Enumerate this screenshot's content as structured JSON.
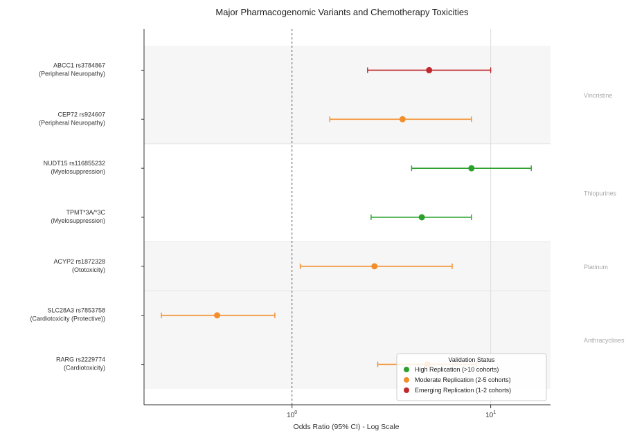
{
  "chart_data": {
    "type": "forest",
    "title": "Major Pharmacogenomic Variants and Chemotherapy Toxicities",
    "xlabel": "Odds Ratio (95% CI) - Log Scale",
    "ylabel": "",
    "x_scale": "log",
    "xlim": [
      0.18,
      20
    ],
    "x_ticks": [
      {
        "value": 1,
        "base": "10",
        "exp": "0"
      },
      {
        "value": 10,
        "base": "10",
        "exp": "1"
      }
    ],
    "reference_line": 1,
    "rows": [
      {
        "line1": "ABCC1 rs3784867",
        "line2": "(Peripheral Neuropathy)",
        "or": 4.9,
        "lo": 2.4,
        "hi": 10.0,
        "status": "emerging"
      },
      {
        "line1": "CEP72 rs924607",
        "line2": "(Peripheral Neuropathy)",
        "or": 3.6,
        "lo": 1.55,
        "hi": 8.0,
        "status": "moderate"
      },
      {
        "line1": "NUDT15 rs116855232",
        "line2": "(Myelosuppression)",
        "or": 8.0,
        "lo": 4.0,
        "hi": 16.0,
        "status": "high"
      },
      {
        "line1": "TPMT*3A/*3C",
        "line2": "(Myelosuppression)",
        "or": 4.5,
        "lo": 2.5,
        "hi": 8.0,
        "status": "high"
      },
      {
        "line1": "ACYP2 rs1872328",
        "line2": "(Ototoxicity)",
        "or": 2.6,
        "lo": 1.1,
        "hi": 6.4,
        "status": "moderate"
      },
      {
        "line1": "SLC28A3 rs7853758",
        "line2": "(Cardiotoxicity (Protective))",
        "or": 0.42,
        "lo": 0.22,
        "hi": 0.82,
        "status": "moderate"
      },
      {
        "line1": "RARG rs2229774",
        "line2": "(Cardiotoxicity)",
        "or": 4.8,
        "lo": 2.7,
        "hi": 8.5,
        "status": "moderate"
      }
    ],
    "groups": [
      {
        "label": "Vincristine",
        "rows": [
          0,
          1
        ],
        "shaded": true
      },
      {
        "label": "Thiopurines",
        "rows": [
          2,
          3
        ],
        "shaded": false
      },
      {
        "label": "Platinum",
        "rows": [
          4
        ],
        "shaded": true
      },
      {
        "label": "Anthracyclines",
        "rows": [
          5,
          6
        ],
        "shaded": true
      }
    ],
    "legend": {
      "title": "Validation Status",
      "placement": "bottom-right",
      "items": [
        {
          "key": "high",
          "label": "High Replication (>10 cohorts)"
        },
        {
          "key": "moderate",
          "label": "Moderate Replication (2-5 cohorts)"
        },
        {
          "key": "emerging",
          "label": "Emerging Replication (1-2 cohorts)"
        }
      ]
    },
    "colors": {
      "high": "#2ca02c",
      "moderate": "#f28e2b",
      "emerging": "#c0282d",
      "band": "#f6f6f6",
      "reference": "#555555",
      "grid": "#dddddd",
      "axis": "#333333",
      "text": "#333333",
      "group_text": "#aaaaaa"
    }
  }
}
